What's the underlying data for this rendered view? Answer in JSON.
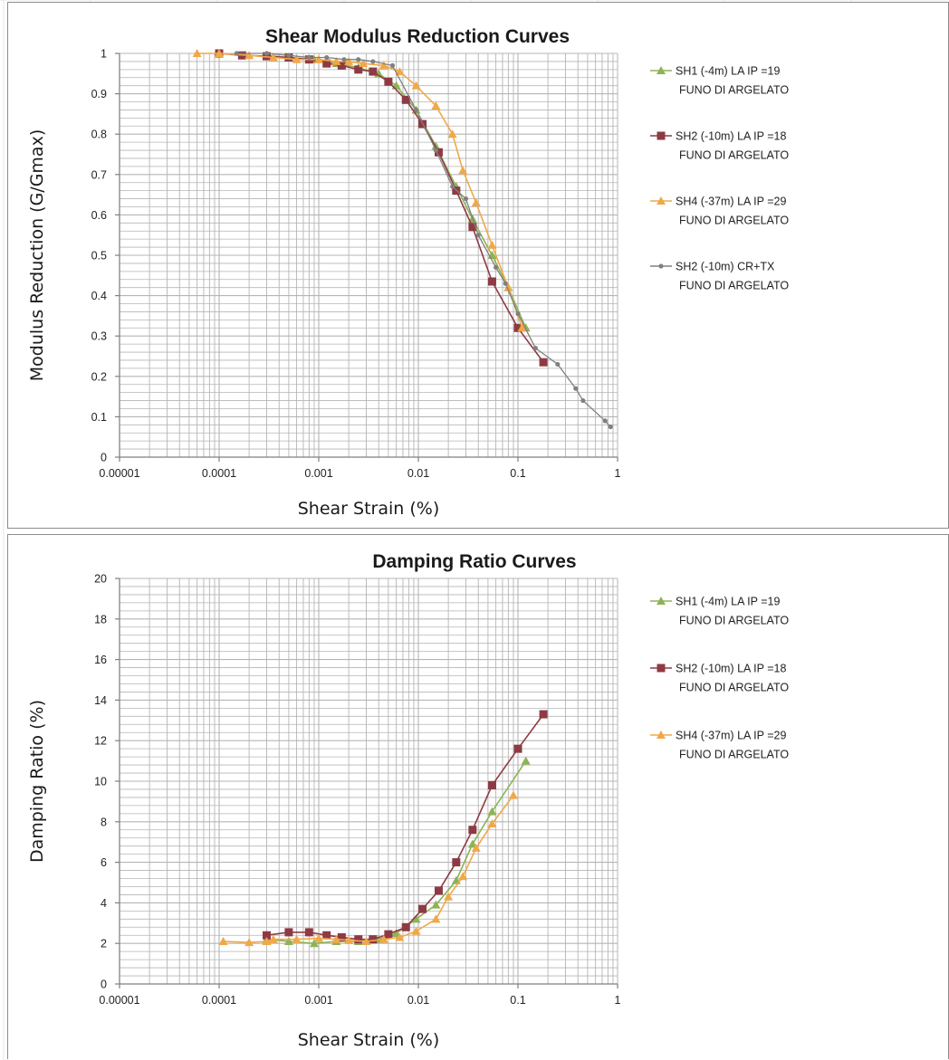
{
  "colors": {
    "sh1": "#8db356",
    "sh2": "#8e3a44",
    "sh4": "#f0a848",
    "sh2crtx": "#808080",
    "grid": "#b5b5b5",
    "axis": "#7f7f7f"
  },
  "chart_data": [
    {
      "type": "scatter",
      "title": "Shear Modulus Reduction Curves",
      "xlabel": "Shear Strain (%)",
      "ylabel": "Modulus Reduction (G/Gmax)",
      "xscale": "log",
      "xlim": [
        1e-05,
        1
      ],
      "ylim": [
        0,
        1
      ],
      "grid": true,
      "legend_position": "right",
      "x_tick_labels": [
        "0.00001",
        "0.0001",
        "0.001",
        "0.01",
        "0.1",
        "1"
      ],
      "y_tick_labels": [
        "0",
        "0.1",
        "0.2",
        "0.3",
        "0.4",
        "0.5",
        "0.6",
        "0.7",
        "0.8",
        "0.9",
        "1"
      ],
      "series": [
        {
          "name": "SH1 (-4m) LA IP =19 FUNO DI ARGELATO",
          "legend_lines": [
            "SH1 (-4m) LA IP =19",
            "FUNO DI ARGELATO"
          ],
          "color_key": "sh1",
          "marker": "triangle",
          "x": [
            0.0003,
            0.0005,
            0.0009,
            0.0015,
            0.0025,
            0.004,
            0.006,
            0.0095,
            0.015,
            0.024,
            0.035,
            0.055,
            0.08,
            0.12
          ],
          "y": [
            0.995,
            0.99,
            0.985,
            0.975,
            0.965,
            0.95,
            0.92,
            0.86,
            0.77,
            0.67,
            0.59,
            0.5,
            0.42,
            0.32
          ]
        },
        {
          "name": "SH2 (-10m) LA IP =18 FUNO DI ARGELATO",
          "legend_lines": [
            "SH2 (-10m) LA IP =18",
            "FUNO DI ARGELATO"
          ],
          "color_key": "sh2",
          "marker": "square",
          "x": [
            0.0001,
            0.00017,
            0.0003,
            0.0005,
            0.0008,
            0.0012,
            0.0017,
            0.0025,
            0.0035,
            0.005,
            0.0075,
            0.011,
            0.016,
            0.024,
            0.035,
            0.055,
            0.1,
            0.18
          ],
          "y": [
            1.0,
            0.995,
            0.993,
            0.99,
            0.985,
            0.975,
            0.97,
            0.96,
            0.955,
            0.93,
            0.885,
            0.825,
            0.755,
            0.66,
            0.57,
            0.435,
            0.32,
            0.235
          ]
        },
        {
          "name": "SH4 (-37m) LA IP =29 FUNO DI ARGELATO",
          "legend_lines": [
            "SH4 (-37m) LA IP =29",
            "FUNO DI ARGELATO"
          ],
          "color_key": "sh4",
          "marker": "triangle",
          "x": [
            6e-05,
            0.0001,
            0.0002,
            0.00035,
            0.0006,
            0.001,
            0.0015,
            0.002,
            0.0028,
            0.0045,
            0.0065,
            0.0095,
            0.015,
            0.022,
            0.028,
            0.038,
            0.055,
            0.08,
            0.11
          ],
          "y": [
            1.0,
            1.0,
            0.995,
            0.99,
            0.985,
            0.985,
            0.98,
            0.98,
            0.975,
            0.97,
            0.955,
            0.92,
            0.87,
            0.8,
            0.71,
            0.63,
            0.525,
            0.42,
            0.32
          ]
        },
        {
          "name": "SH2 (-10m) CR+TX FUNO DI ARGELATO",
          "legend_lines": [
            "SH2 (-10m)    CR+TX",
            "FUNO DI ARGELATO"
          ],
          "color_key": "sh2crtx",
          "marker": "dot",
          "x": [
            0.00015,
            0.0003,
            0.0005,
            0.0008,
            0.0012,
            0.0018,
            0.0025,
            0.0035,
            0.0055,
            0.0095,
            0.015,
            0.022,
            0.03,
            0.04,
            0.06,
            0.075,
            0.1,
            0.15,
            0.25,
            0.38,
            0.45,
            0.75,
            0.85
          ],
          "y": [
            1.0,
            1.0,
            0.995,
            0.99,
            0.99,
            0.985,
            0.985,
            0.98,
            0.97,
            0.86,
            0.76,
            0.67,
            0.64,
            0.55,
            0.47,
            0.43,
            0.355,
            0.27,
            0.23,
            0.17,
            0.14,
            0.09,
            0.075
          ]
        }
      ]
    },
    {
      "type": "scatter",
      "title": "Damping Ratio Curves",
      "xlabel": "Shear Strain (%)",
      "ylabel": "Damping Ratio (%)",
      "xscale": "log",
      "xlim": [
        1e-05,
        1
      ],
      "ylim": [
        0,
        20
      ],
      "grid": true,
      "legend_position": "right",
      "x_tick_labels": [
        "0.00001",
        "0.0001",
        "0.001",
        "0.01",
        "0.1",
        "1"
      ],
      "y_tick_labels": [
        "0",
        "2",
        "4",
        "6",
        "8",
        "10",
        "12",
        "14",
        "16",
        "18",
        "20"
      ],
      "series": [
        {
          "name": "SH1 (-4m) LA IP =19 FUNO DI ARGELATO",
          "legend_lines": [
            "SH1 (-4m) LA IP =19",
            "FUNO DI ARGELATO"
          ],
          "color_key": "sh1",
          "marker": "triangle",
          "x": [
            0.0003,
            0.0005,
            0.0009,
            0.0015,
            0.0025,
            0.004,
            0.006,
            0.0095,
            0.015,
            0.024,
            0.035,
            0.055,
            0.12
          ],
          "y": [
            2.2,
            2.1,
            2.0,
            2.1,
            2.1,
            2.2,
            2.5,
            3.2,
            3.9,
            5.1,
            6.9,
            8.5,
            11.0
          ]
        },
        {
          "name": "SH2 (-10m) LA IP =18 FUNO DI ARGELATO",
          "legend_lines": [
            "SH2 (-10m) LA IP =18",
            "FUNO DI ARGELATO"
          ],
          "color_key": "sh2",
          "marker": "square",
          "x": [
            0.0003,
            0.0005,
            0.0008,
            0.0012,
            0.0017,
            0.0025,
            0.0035,
            0.005,
            0.0075,
            0.011,
            0.016,
            0.024,
            0.035,
            0.055,
            0.1,
            0.18
          ],
          "y": [
            2.4,
            2.55,
            2.55,
            2.4,
            2.3,
            2.2,
            2.2,
            2.45,
            2.8,
            3.7,
            4.6,
            6.0,
            7.6,
            9.8,
            11.6,
            13.3
          ]
        },
        {
          "name": "SH4 (-37m) LA IP =29 FUNO DI ARGELATO",
          "legend_lines": [
            "SH4 (-37m) LA IP =29",
            "FUNO DI ARGELATO"
          ],
          "color_key": "sh4",
          "marker": "triangle",
          "x": [
            0.00011,
            0.0002,
            0.0003,
            0.00035,
            0.0006,
            0.001,
            0.0015,
            0.002,
            0.003,
            0.0045,
            0.0065,
            0.0095,
            0.015,
            0.02,
            0.028,
            0.038,
            0.055,
            0.09
          ],
          "y": [
            2.1,
            2.05,
            2.1,
            2.2,
            2.2,
            2.25,
            2.2,
            2.15,
            2.1,
            2.2,
            2.3,
            2.6,
            3.2,
            4.3,
            5.3,
            6.7,
            7.9,
            9.3
          ]
        }
      ]
    }
  ]
}
